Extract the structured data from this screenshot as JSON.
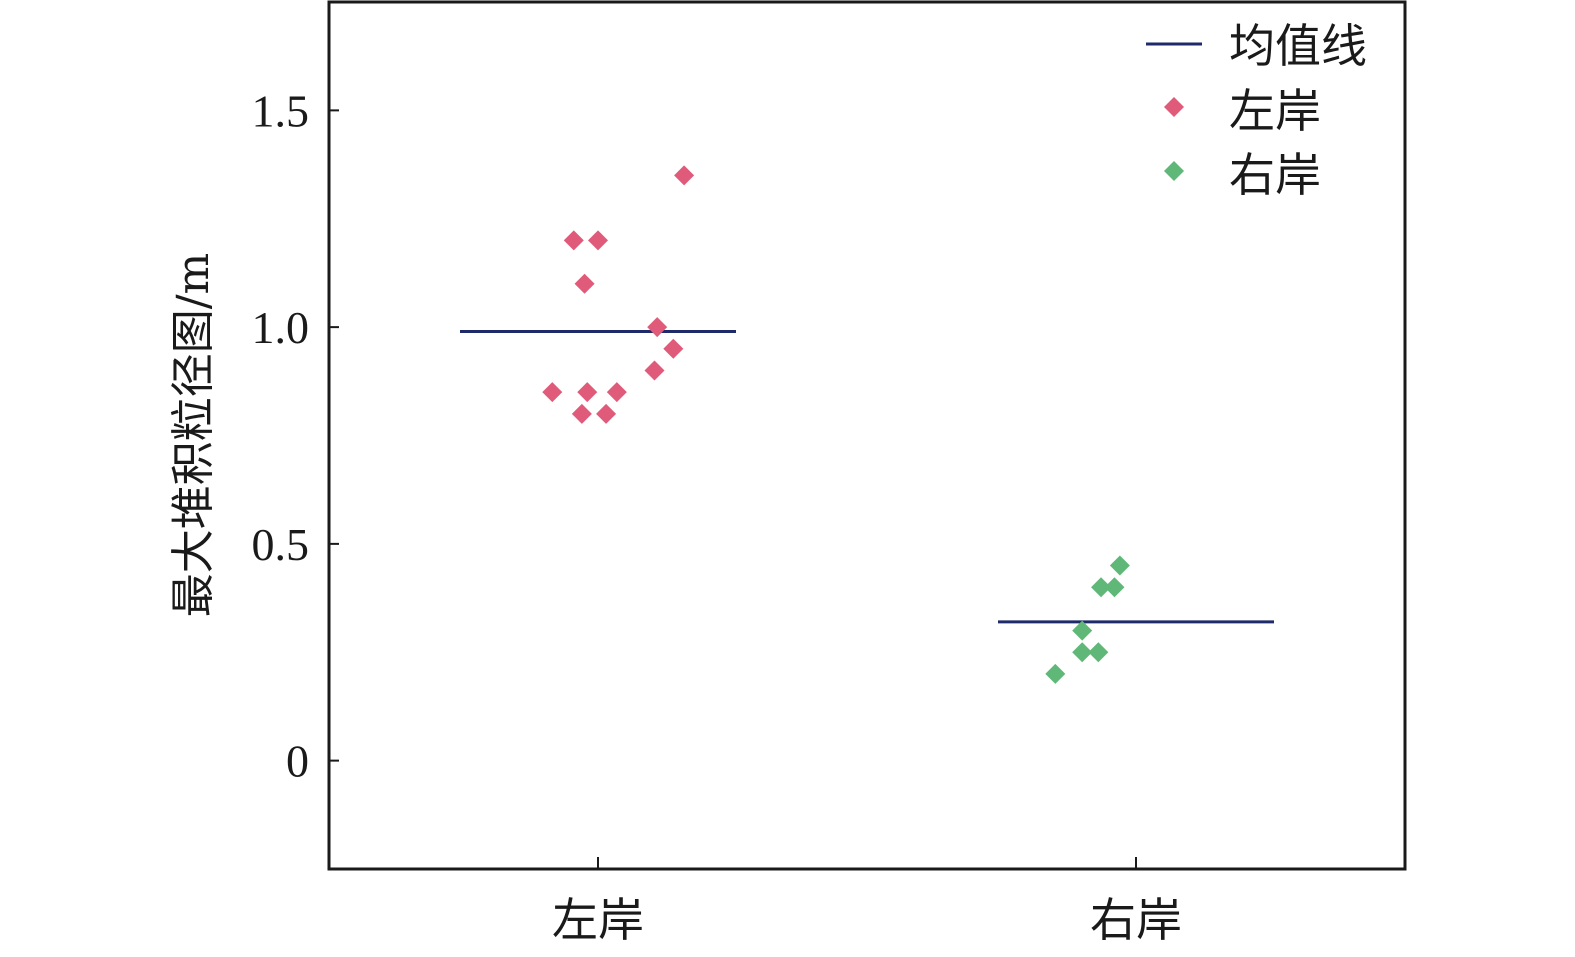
{
  "chart_data": {
    "type": "scatter",
    "title": "",
    "xlabel": "",
    "ylabel": "最大堆积粒径图/m",
    "categories": [
      "左岸",
      "右岸"
    ],
    "ylim": [
      -0.25,
      1.75
    ],
    "yticks": [
      0,
      0.5,
      1.0,
      1.5
    ],
    "ytick_labels": [
      "0",
      "0.5",
      "1.0",
      "1.5"
    ],
    "grid": false,
    "legend_position": "top-right",
    "legend": {
      "mean_label": "均值线",
      "left_label": "左岸",
      "right_label": "右岸"
    },
    "colors": {
      "mean_line": "#1f2a6b",
      "left": "#e05a7a",
      "right": "#5fb878",
      "axis": "#1a1a1a"
    },
    "series": [
      {
        "name": "左岸",
        "category": "左岸",
        "marker": "diamond",
        "mean": 0.99,
        "points": [
          {
            "offset": -0.045,
            "y": 1.2
          },
          {
            "offset": 0.0,
            "y": 1.2
          },
          {
            "offset": 0.16,
            "y": 1.35
          },
          {
            "offset": -0.025,
            "y": 1.1
          },
          {
            "offset": 0.11,
            "y": 1.0
          },
          {
            "offset": 0.14,
            "y": 0.95
          },
          {
            "offset": 0.105,
            "y": 0.9
          },
          {
            "offset": -0.085,
            "y": 0.85
          },
          {
            "offset": -0.02,
            "y": 0.85
          },
          {
            "offset": 0.035,
            "y": 0.85
          },
          {
            "offset": -0.03,
            "y": 0.8
          },
          {
            "offset": 0.015,
            "y": 0.8
          }
        ]
      },
      {
        "name": "右岸",
        "category": "右岸",
        "marker": "diamond",
        "mean": 0.32,
        "points": [
          {
            "offset": -0.03,
            "y": 0.45
          },
          {
            "offset": -0.065,
            "y": 0.4
          },
          {
            "offset": -0.04,
            "y": 0.4
          },
          {
            "offset": -0.1,
            "y": 0.3
          },
          {
            "offset": -0.1,
            "y": 0.25
          },
          {
            "offset": -0.07,
            "y": 0.25
          },
          {
            "offset": -0.15,
            "y": 0.2
          }
        ]
      }
    ]
  }
}
